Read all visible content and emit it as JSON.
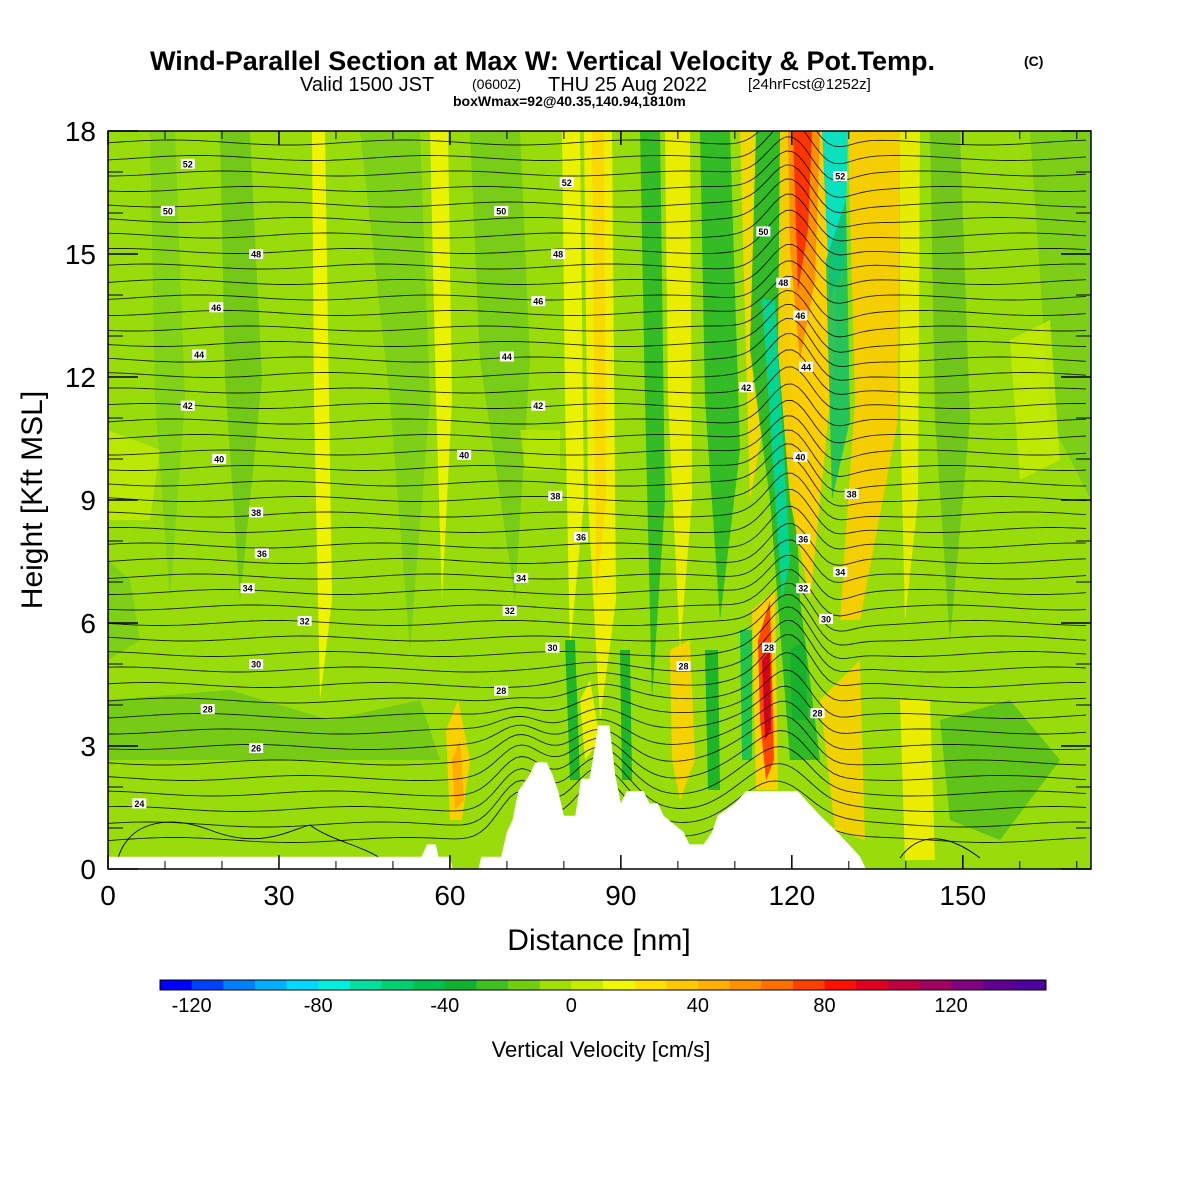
{
  "title": {
    "main": "Wind-Parallel Section at Max W: Vertical Velocity & Pot.Temp.",
    "main_tag": "(C)",
    "line2_a": "Valid 1500 JST",
    "line2_b": "(0600Z)",
    "line2_c": "THU 25 Aug 2022",
    "line2_d": "[24hrFcst@1252z]",
    "line3": "boxWmax=92@40.35,140.94,1810m"
  },
  "chart_data": {
    "type": "heatmap",
    "xlabel": "Distance [nm]",
    "ylabel": "Height [Kft MSL]",
    "xlim": [
      0,
      172.5
    ],
    "ylim": [
      0,
      18
    ],
    "xticks": [
      0,
      30,
      60,
      90,
      120,
      150
    ],
    "yticks": [
      0,
      3,
      6,
      9,
      12,
      15,
      18
    ],
    "field": "Vertical Velocity",
    "colorbar": {
      "label": "Vertical Velocity [cm/s]",
      "min": -130,
      "max": 150,
      "step": 10,
      "tick_values": [
        -120,
        -80,
        -40,
        0,
        40,
        80,
        120
      ],
      "tick_labels": [
        "-120",
        "-80",
        "-40",
        "0",
        "40",
        "80",
        "120"
      ],
      "colors": [
        "#0000ff",
        "#0040ff",
        "#0080ff",
        "#00b0ff",
        "#00d8ff",
        "#00f0e0",
        "#00e0a0",
        "#00d070",
        "#00c050",
        "#10b030",
        "#40c020",
        "#70d010",
        "#a0e000",
        "#c8ec00",
        "#f0f800",
        "#ffe000",
        "#ffc800",
        "#ffb000",
        "#ff9000",
        "#ff7000",
        "#ff4000",
        "#ff1000",
        "#e00020",
        "#c00040",
        "#a00060",
        "#800080",
        "#600090",
        "#5000a0"
      ]
    },
    "features": [
      {
        "kind": "updraft",
        "x": 121.5,
        "y_from": 5.2,
        "y_to": 18,
        "peak_cm_s": 92
      },
      {
        "kind": "updraft",
        "x": 115.5,
        "y_from": 2,
        "y_to": 7,
        "peak_cm_s": 100
      },
      {
        "kind": "downdraft",
        "x": 127,
        "y_from": 8,
        "y_to": 18,
        "min_cm_s": -60
      },
      {
        "kind": "updraft",
        "x": 61,
        "y_from": 1,
        "y_to": 4,
        "peak_cm_s": 45
      },
      {
        "kind": "updraft",
        "x": 86,
        "y_from": 3,
        "y_to": 18,
        "peak_cm_s": 35
      },
      {
        "kind": "updraft",
        "x": 132,
        "y_from": 6,
        "y_to": 18,
        "peak_cm_s": 45
      }
    ],
    "terrain_kft": [
      [
        0,
        0.3
      ],
      [
        55,
        0.3
      ],
      [
        56,
        0.6
      ],
      [
        57.5,
        0.6
      ],
      [
        58,
        0.3
      ],
      [
        60,
        0.3
      ],
      [
        60.5,
        0
      ],
      [
        65,
        0
      ],
      [
        65.5,
        0.3
      ],
      [
        69,
        0.3
      ],
      [
        69.5,
        0.6
      ],
      [
        70,
        0.9
      ],
      [
        71,
        1.2
      ],
      [
        72,
        1.9
      ],
      [
        74,
        2.3
      ],
      [
        75,
        2.6
      ],
      [
        77,
        2.6
      ],
      [
        78,
        2.3
      ],
      [
        79,
        1.9
      ],
      [
        80,
        1.3
      ],
      [
        82,
        1.3
      ],
      [
        83,
        2.2
      ],
      [
        84.5,
        2.2
      ],
      [
        85,
        2.6
      ],
      [
        86,
        3.5
      ],
      [
        88,
        3.5
      ],
      [
        89,
        2.3
      ],
      [
        90,
        1.6
      ],
      [
        91,
        1.9
      ],
      [
        94,
        1.9
      ],
      [
        95,
        1.6
      ],
      [
        96.5,
        1.6
      ],
      [
        97.5,
        1.3
      ],
      [
        101,
        0.9
      ],
      [
        102,
        0.6
      ],
      [
        104.5,
        0.6
      ],
      [
        106,
        0.9
      ],
      [
        107,
        1.3
      ],
      [
        110,
        1.6
      ],
      [
        112,
        1.9
      ],
      [
        121,
        1.9
      ],
      [
        123,
        1.6
      ],
      [
        125,
        1.3
      ],
      [
        128,
        0.9
      ],
      [
        130,
        0.6
      ],
      [
        132,
        0.3
      ],
      [
        133,
        0
      ],
      [
        172.5,
        0
      ]
    ],
    "contours": {
      "field": "Pot.Temp.",
      "levels": [
        24,
        26,
        28,
        30,
        32,
        34,
        36,
        38,
        40,
        42,
        44,
        46,
        48,
        50,
        52
      ],
      "labels": [
        {
          "value": "52",
          "x": 14,
          "y": 17.2
        },
        {
          "value": "50",
          "x": 10.5,
          "y": 16.05
        },
        {
          "value": "48",
          "x": 26,
          "y": 15.0
        },
        {
          "value": "46",
          "x": 19,
          "y": 13.7
        },
        {
          "value": "44",
          "x": 16,
          "y": 12.55
        },
        {
          "value": "42",
          "x": 14,
          "y": 11.3
        },
        {
          "value": "40",
          "x": 19.5,
          "y": 10.0
        },
        {
          "value": "38",
          "x": 26,
          "y": 8.7
        },
        {
          "value": "36",
          "x": 27,
          "y": 7.7
        },
        {
          "value": "34",
          "x": 24.5,
          "y": 6.85
        },
        {
          "value": "32",
          "x": 34.5,
          "y": 6.05
        },
        {
          "value": "30",
          "x": 26,
          "y": 5.0
        },
        {
          "value": "28",
          "x": 17.5,
          "y": 3.9
        },
        {
          "value": "26",
          "x": 26,
          "y": 2.95
        },
        {
          "value": "24",
          "x": 5.5,
          "y": 1.6
        },
        {
          "value": "50",
          "x": 69,
          "y": 16.05
        },
        {
          "value": "52",
          "x": 80.5,
          "y": 16.75
        },
        {
          "value": "48",
          "x": 79,
          "y": 15.0
        },
        {
          "value": "46",
          "x": 75.5,
          "y": 13.85
        },
        {
          "value": "44",
          "x": 70,
          "y": 12.5
        },
        {
          "value": "42",
          "x": 75.5,
          "y": 11.3
        },
        {
          "value": "40",
          "x": 62.5,
          "y": 10.1
        },
        {
          "value": "38",
          "x": 78.5,
          "y": 9.1
        },
        {
          "value": "36",
          "x": 83,
          "y": 8.1
        },
        {
          "value": "34",
          "x": 72.5,
          "y": 7.1
        },
        {
          "value": "32",
          "x": 70.5,
          "y": 6.3
        },
        {
          "value": "30",
          "x": 78,
          "y": 5.4
        },
        {
          "value": "28",
          "x": 69,
          "y": 4.35
        },
        {
          "value": "28",
          "x": 101,
          "y": 4.95
        },
        {
          "value": "42",
          "x": 112,
          "y": 11.75
        },
        {
          "value": "50",
          "x": 115,
          "y": 15.55
        },
        {
          "value": "48",
          "x": 118.5,
          "y": 14.3
        },
        {
          "value": "46",
          "x": 121.5,
          "y": 13.5
        },
        {
          "value": "44",
          "x": 122.5,
          "y": 12.25
        },
        {
          "value": "52",
          "x": 128.5,
          "y": 16.9
        },
        {
          "value": "40",
          "x": 121.5,
          "y": 10.05
        },
        {
          "value": "38",
          "x": 130.5,
          "y": 9.15
        },
        {
          "value": "36",
          "x": 122,
          "y": 8.05
        },
        {
          "value": "34",
          "x": 128.5,
          "y": 7.25
        },
        {
          "value": "32",
          "x": 122,
          "y": 6.85
        },
        {
          "value": "30",
          "x": 126,
          "y": 6.1
        },
        {
          "value": "28",
          "x": 116,
          "y": 5.4
        },
        {
          "value": "28",
          "x": 124.5,
          "y": 3.8
        }
      ]
    }
  }
}
